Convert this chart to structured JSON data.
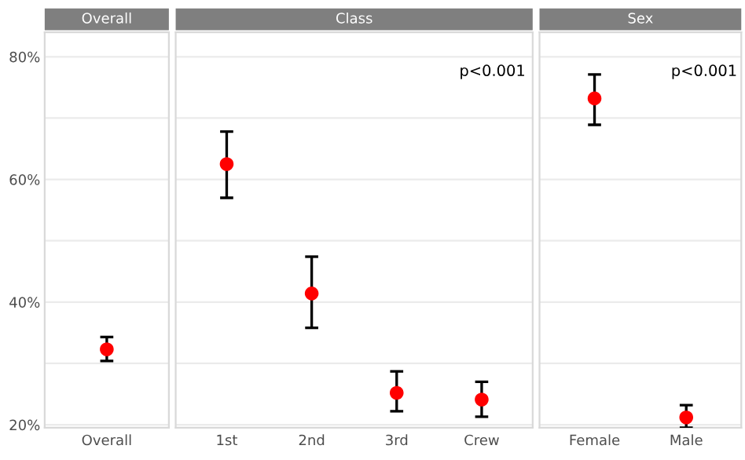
{
  "chart_data": [
    {
      "type": "scatter",
      "title": "Overall",
      "categories": [
        "Overall"
      ],
      "series": [
        {
          "color": "#ff0000",
          "values": [
            32.3
          ],
          "errors": [
            [
              30.4,
              34.3
            ]
          ]
        }
      ],
      "ylim": [
        19.5,
        84
      ],
      "yticks": [
        {
          "value": 20,
          "label": "20%"
        },
        {
          "value": 30,
          "label": null
        },
        {
          "value": 40,
          "label": "40%"
        },
        {
          "value": 50,
          "label": null
        },
        {
          "value": 60,
          "label": "60%"
        },
        {
          "value": 70,
          "label": null
        },
        {
          "value": 80,
          "label": "80%"
        }
      ],
      "grid": "y",
      "marker": "circle"
    },
    {
      "type": "scatter",
      "title": "Class",
      "categories": [
        "1st",
        "2nd",
        "3rd",
        "Crew"
      ],
      "series": [
        {
          "color": "#ff0000",
          "values": [
            62.5,
            41.4,
            25.2,
            24.1
          ],
          "errors": [
            [
              57.0,
              67.8
            ],
            [
              35.8,
              47.4
            ],
            [
              22.2,
              28.7
            ],
            [
              21.3,
              27.0
            ]
          ]
        }
      ],
      "ylim": [
        19.5,
        84
      ],
      "yticks": [
        20,
        30,
        40,
        50,
        60,
        70,
        80
      ],
      "tick_labels": "x",
      "grid": "y",
      "marker": "circle",
      "annotations": [
        "p<0.001"
      ]
    },
    {
      "type": "scatter",
      "title": "Sex",
      "categories": [
        "Female",
        "Male"
      ],
      "series": [
        {
          "color": "#ff0000",
          "values": [
            73.2,
            21.2
          ],
          "errors": [
            [
              68.9,
              77.1
            ],
            [
              19.5,
              23.2
            ]
          ]
        }
      ],
      "ylim": [
        19.5,
        84
      ],
      "yticks": [
        20,
        30,
        40,
        50,
        60,
        70,
        80
      ],
      "tick_labels": "x",
      "grid": "y",
      "marker": "circle",
      "annotations": [
        "p<0.001"
      ]
    }
  ]
}
